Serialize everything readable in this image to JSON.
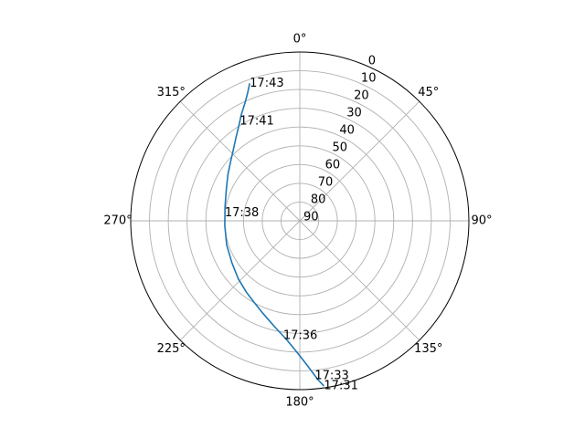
{
  "chart_data": {
    "type": "line",
    "projection": "polar",
    "theta_zero_location": "top",
    "theta_direction": "clockwise",
    "r_axis": "elevation",
    "r_inverted": true,
    "rlim": [
      90,
      0
    ],
    "grid": true,
    "theta_ticks": [
      {
        "angle": 0,
        "label": "0°"
      },
      {
        "angle": 45,
        "label": "45°"
      },
      {
        "angle": 90,
        "label": "90°"
      },
      {
        "angle": 135,
        "label": "135°"
      },
      {
        "angle": 180,
        "label": "180°"
      },
      {
        "angle": 225,
        "label": "225°"
      },
      {
        "angle": 270,
        "label": "270°"
      },
      {
        "angle": 315,
        "label": "315°"
      }
    ],
    "r_ticks": [
      {
        "value": 0,
        "label": "0"
      },
      {
        "value": 10,
        "label": "10"
      },
      {
        "value": 20,
        "label": "20"
      },
      {
        "value": 30,
        "label": "30"
      },
      {
        "value": 40,
        "label": "40"
      },
      {
        "value": 50,
        "label": "50"
      },
      {
        "value": 60,
        "label": "60"
      },
      {
        "value": 70,
        "label": "70"
      },
      {
        "value": 80,
        "label": "80"
      },
      {
        "value": 90,
        "label": "90"
      }
    ],
    "colors": {
      "line": "#1f77b4",
      "grid": "#b0b0b0",
      "frame": "#000000"
    },
    "series": [
      {
        "azimuth": [
          171.7,
          173.6,
          175.7,
          178.2,
          181.3,
          185.6,
          188.2,
          192.0,
          196.4,
          201.9,
          208.7,
          216.8,
          226.7,
          238.2,
          251.7,
          266.6,
          280.7,
          293.0,
          302.7,
          310.6,
          317.2,
          322.7,
          327.2,
          331.1,
          334.5,
          337.5,
          340.0
        ],
        "elevation": [
          1.0,
          5.0,
          10.0,
          15.0,
          20.0,
          25.5,
          28.0,
          31.0,
          34.0,
          37.0,
          40.0,
          42.5,
          45.0,
          47.5,
          49.0,
          50.0,
          49.5,
          47.5,
          44.5,
          41.5,
          38.0,
          34.0,
          30.0,
          25.5,
          21.5,
          17.0,
          12.0
        ]
      }
    ],
    "annotations": [
      {
        "text": "17:31",
        "azimuth": 171.7,
        "elevation": 1.0
      },
      {
        "text": "17:33",
        "azimuth": 174.5,
        "elevation": 7.0
      },
      {
        "text": "17:36",
        "azimuth": 188.2,
        "elevation": 28.0
      },
      {
        "text": "17:38",
        "azimuth": 276.0,
        "elevation": 49.8
      },
      {
        "text": "17:41",
        "azimuth": 329.0,
        "elevation": 28.0
      },
      {
        "text": "17:43",
        "azimuth": 340.0,
        "elevation": 12.0
      }
    ]
  }
}
